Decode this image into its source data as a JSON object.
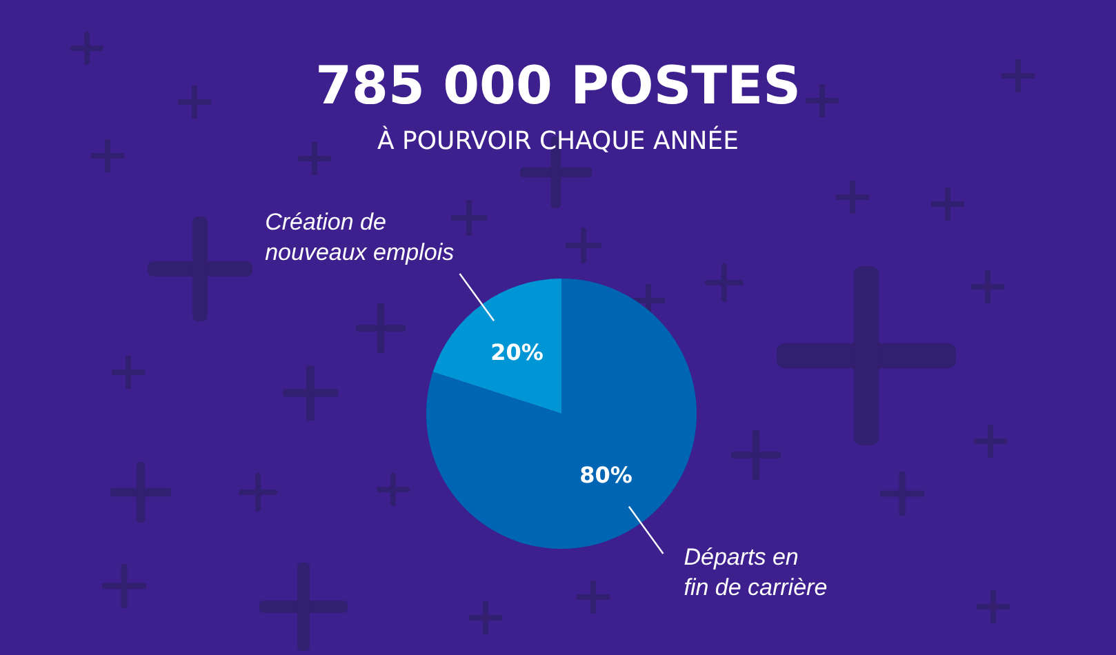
{
  "chart_data": {
    "type": "pie",
    "title": "785 000 POSTES",
    "subtitle": "À POURVOIR CHAQUE ANNÉE",
    "categories": [
      "Création de\nnouveaux emplois",
      "Départs en\nfin de carrière"
    ],
    "values": [
      20,
      80
    ],
    "colors": [
      "#0095d5",
      "#0066b3"
    ],
    "value_labels": [
      "20%",
      "80%"
    ]
  }
}
